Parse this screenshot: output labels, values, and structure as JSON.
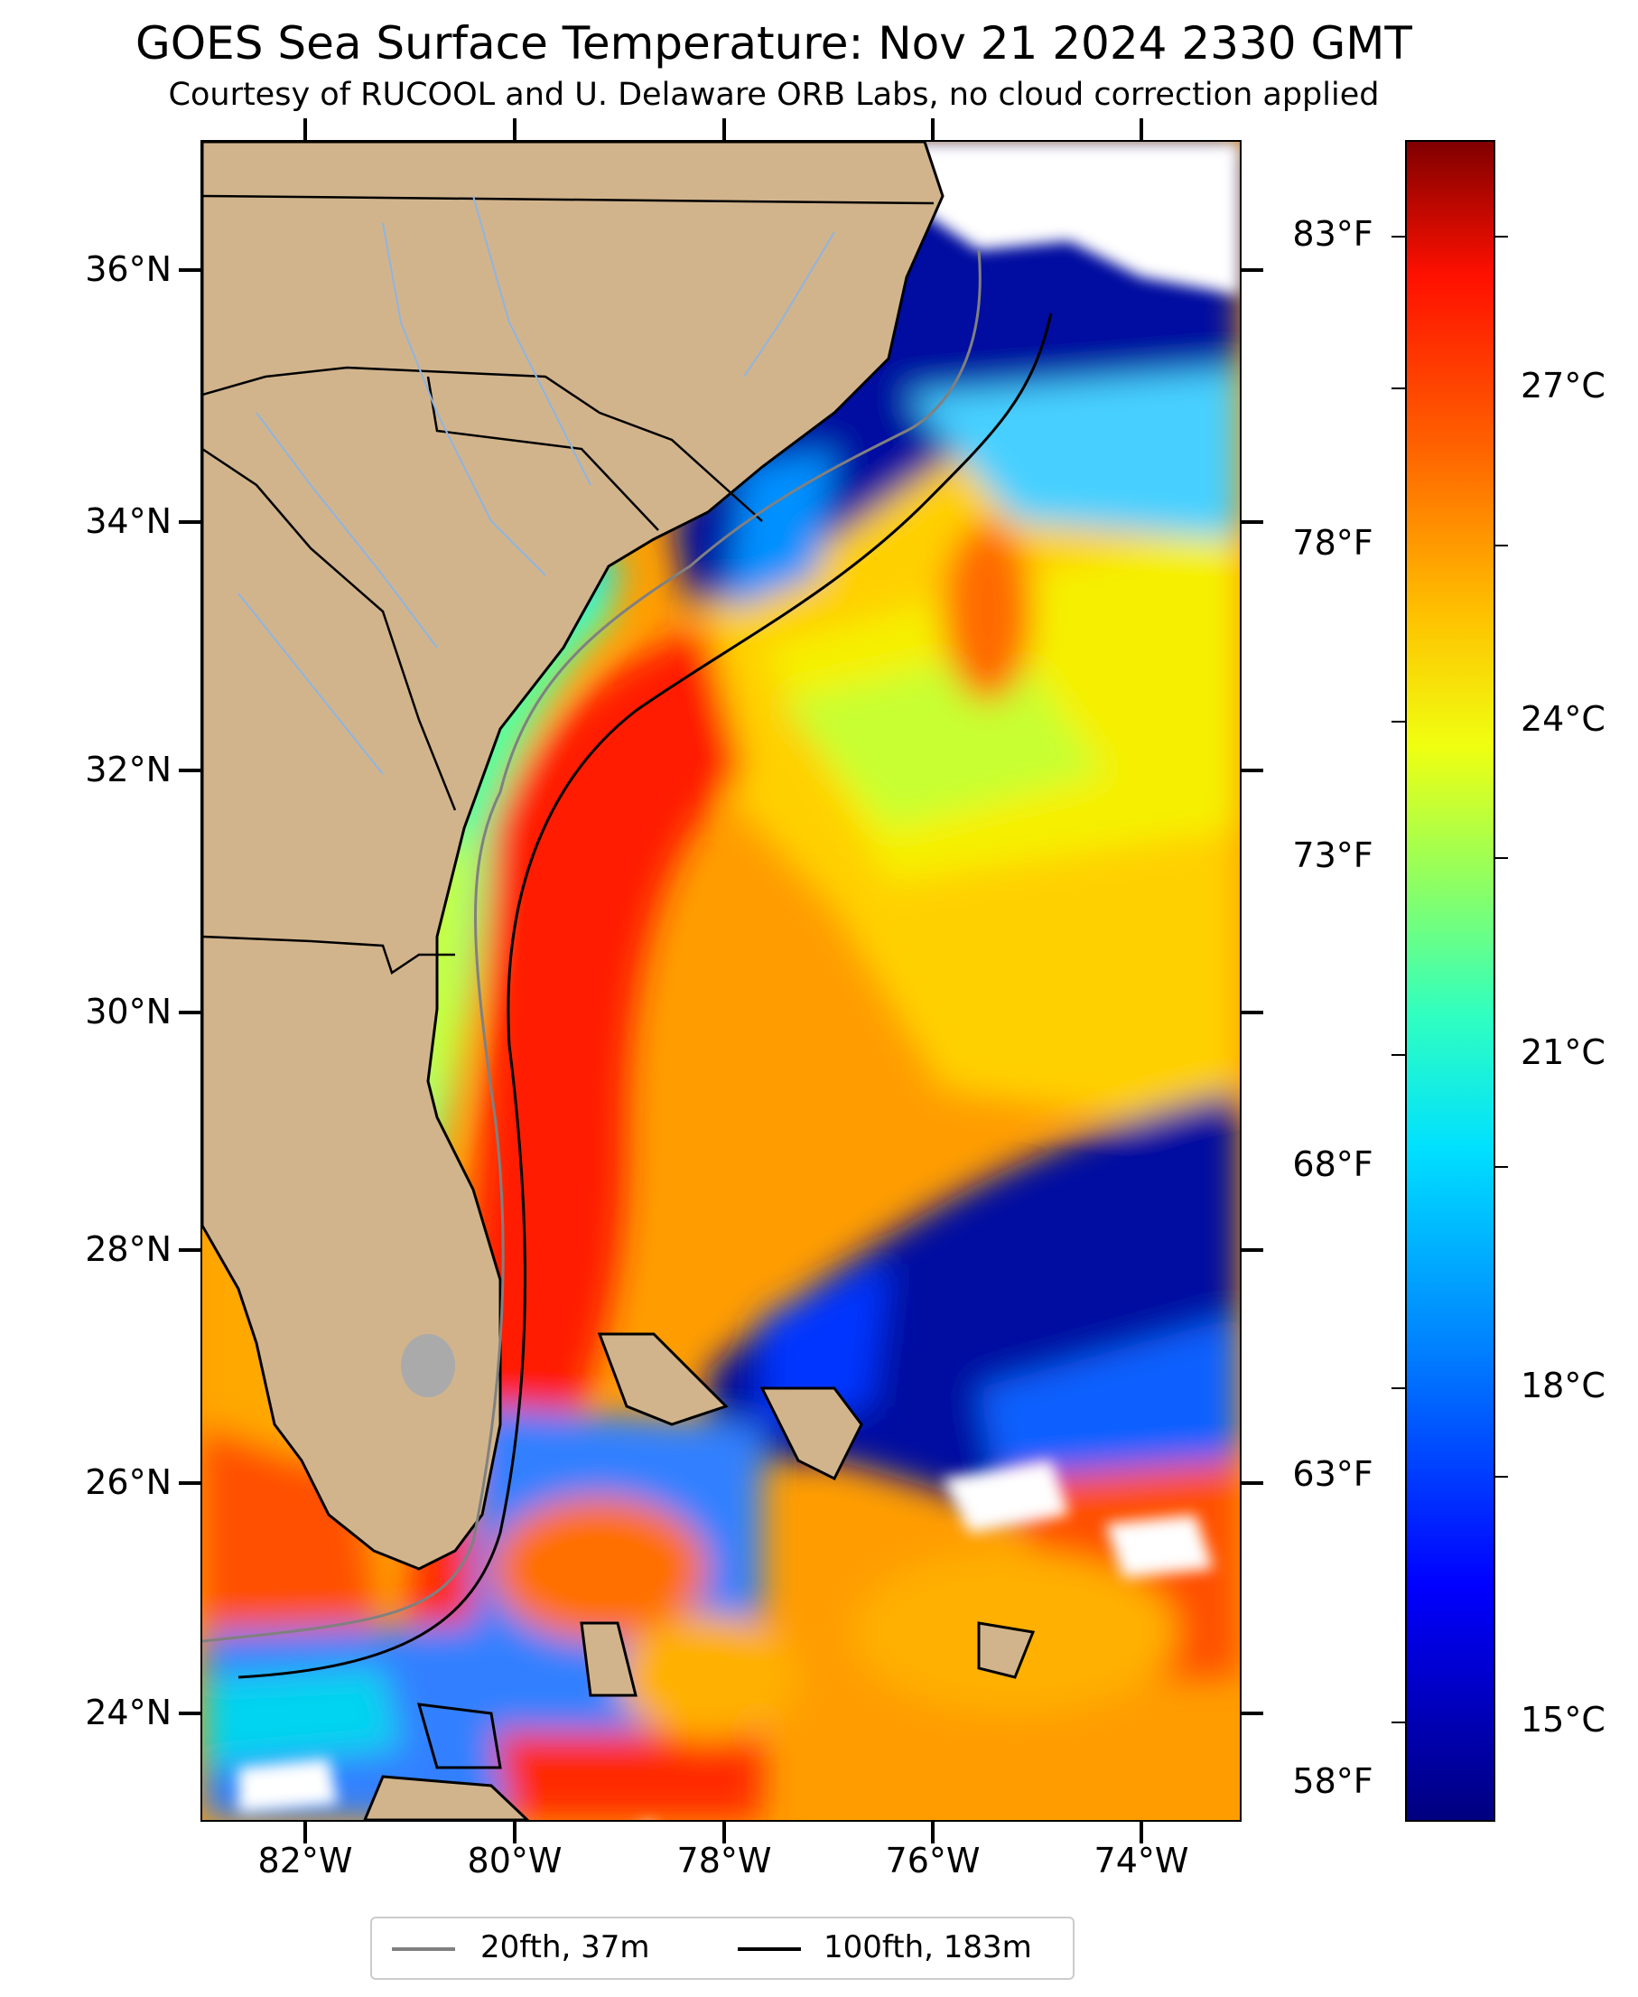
{
  "title": "GOES Sea Surface Temperature: Nov 21 2024 2330 GMT",
  "subtitle": "Courtesy of RUCOOL and U. Delaware ORB Labs, no cloud correction applied",
  "map": {
    "latitude_labels": [
      "36°N",
      "34°N",
      "32°N",
      "30°N",
      "28°N",
      "26°N",
      "24°N"
    ],
    "longitude_labels": [
      "82°W",
      "80°W",
      "78°W",
      "76°W",
      "74°W"
    ],
    "land_color": "#d2b48c",
    "cloud_color": "#ffffff"
  },
  "colorbar": {
    "celsius_labels": [
      "27°C",
      "24°C",
      "21°C",
      "18°C",
      "15°C"
    ],
    "fahrenheit_labels": [
      "83°F",
      "78°F",
      "73°F",
      "68°F",
      "63°F",
      "58°F"
    ],
    "colormap": "jet"
  },
  "legend": {
    "items": [
      {
        "label": "20fth, 37m",
        "color": "#808080"
      },
      {
        "label": "100fth, 183m",
        "color": "#000000"
      }
    ]
  }
}
